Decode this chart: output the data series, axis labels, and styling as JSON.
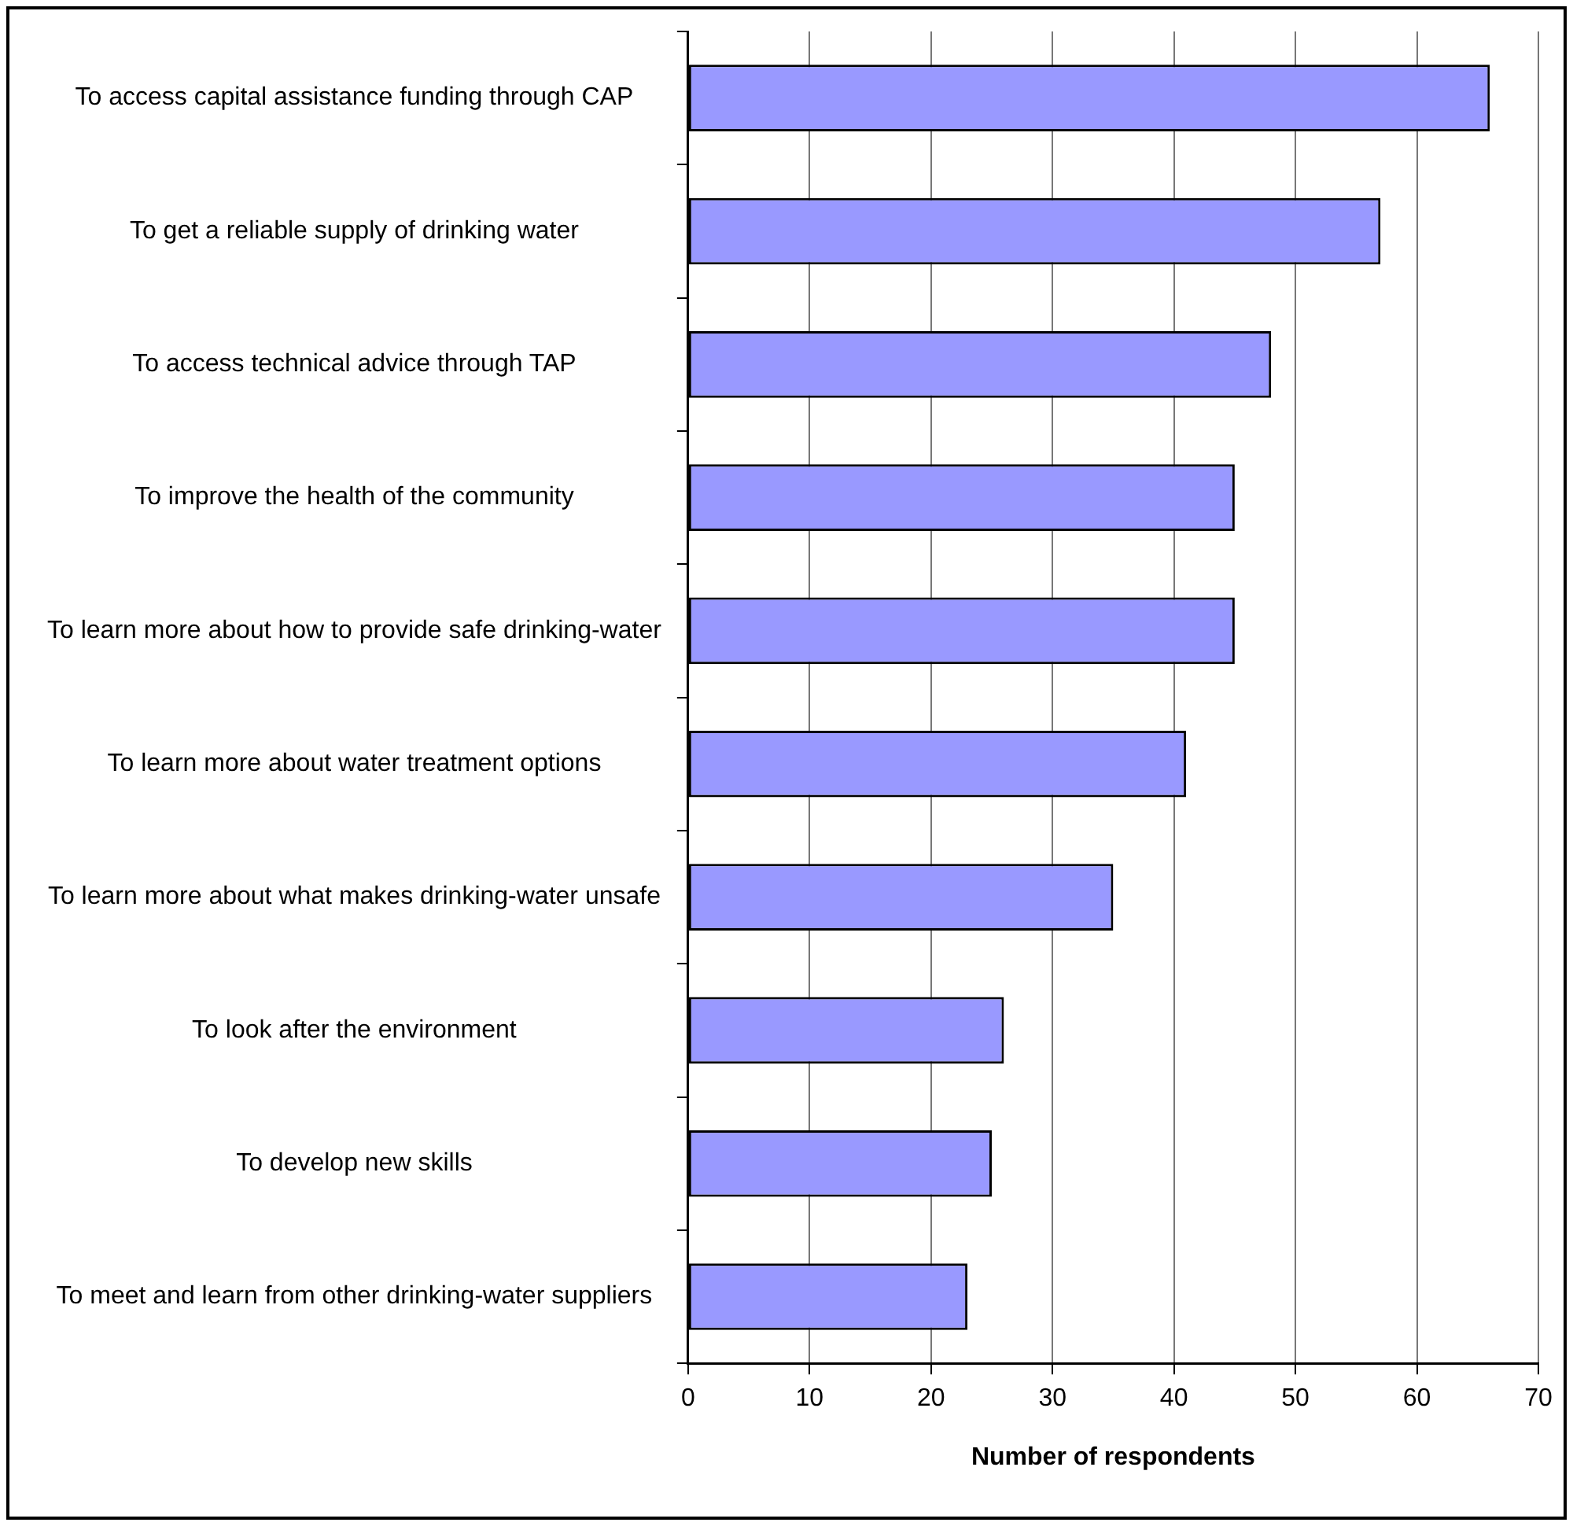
{
  "chart_data": {
    "type": "bar",
    "orientation": "horizontal",
    "xlabel": "Number of respondents",
    "categories": [
      "To access capital assistance funding through CAP",
      "To get a reliable supply of drinking water",
      "To access technical advice through TAP",
      "To improve the health of the community",
      "To learn more about how to provide safe drinking-water",
      "To learn more about water treatment options",
      "To learn more about what makes drinking-water unsafe",
      "To look after the environment",
      "To develop new skills",
      "To meet and learn from other drinking-water suppliers"
    ],
    "values": [
      66,
      57,
      48,
      45,
      45,
      41,
      35,
      26,
      25,
      23
    ],
    "color": "#9999ff",
    "xlim": [
      0,
      70
    ],
    "xticks": [
      0,
      10,
      20,
      30,
      40,
      50,
      60,
      70
    ],
    "grid": "x",
    "legend": false
  }
}
